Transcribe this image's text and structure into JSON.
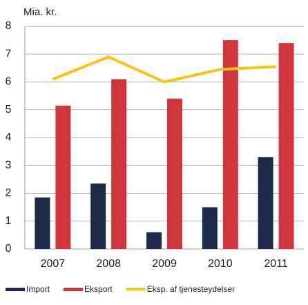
{
  "chart_data": {
    "type": "bar",
    "y_label": "Mia. kr.",
    "categories": [
      "2007",
      "2008",
      "2009",
      "2010",
      "2011"
    ],
    "series": [
      {
        "name": "Import",
        "color": "#1e2a4a",
        "values": [
          1.85,
          2.35,
          0.6,
          1.5,
          3.3
        ]
      },
      {
        "name": "Eksport",
        "color": "#d0343c",
        "values": [
          5.15,
          6.1,
          5.4,
          7.5,
          7.4
        ]
      },
      {
        "name": "Eksp. af tjenesteydelser",
        "color": "#f9c315",
        "type": "line",
        "values": [
          6.1,
          6.9,
          6.0,
          6.45,
          6.55
        ]
      }
    ],
    "ylim": [
      0,
      8
    ],
    "yticks": [
      0,
      1,
      2,
      3,
      4,
      5,
      6,
      7,
      8
    ],
    "grid": true
  }
}
